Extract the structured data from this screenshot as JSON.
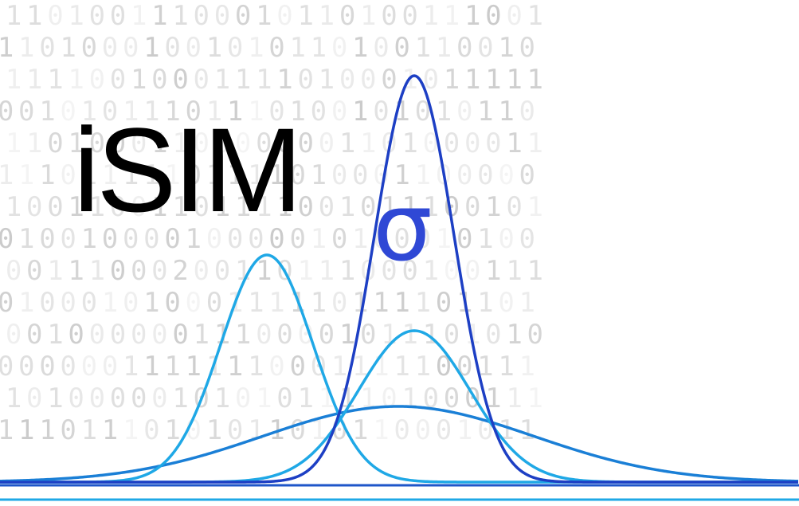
{
  "logo": {
    "title": "iSIM",
    "subscript": "σ"
  },
  "background_binary": [
    "11010011100010110100111001",
    "11010001001010110100110010",
    "11110010001111010001011111",
    "00101011101110100101010110",
    "11010001100000001101000011",
    "11101111101111010001100000",
    "10011001101111001011100101",
    "01001000010000010100010100",
    "00111000200110111000100111",
    "01000101000111110111101101",
    "00100000011100001011101010",
    "00000011111110001111100111",
    "10100000101010111101000111",
    "11101110101011010110001011"
  ],
  "colors": {
    "sigma": "#2f48d5",
    "curve_light": "#1fa8e6",
    "curve_mid": "#1a7fd6",
    "curve_dark": "#1e56c9",
    "curve_deep": "#1d3fc4"
  }
}
